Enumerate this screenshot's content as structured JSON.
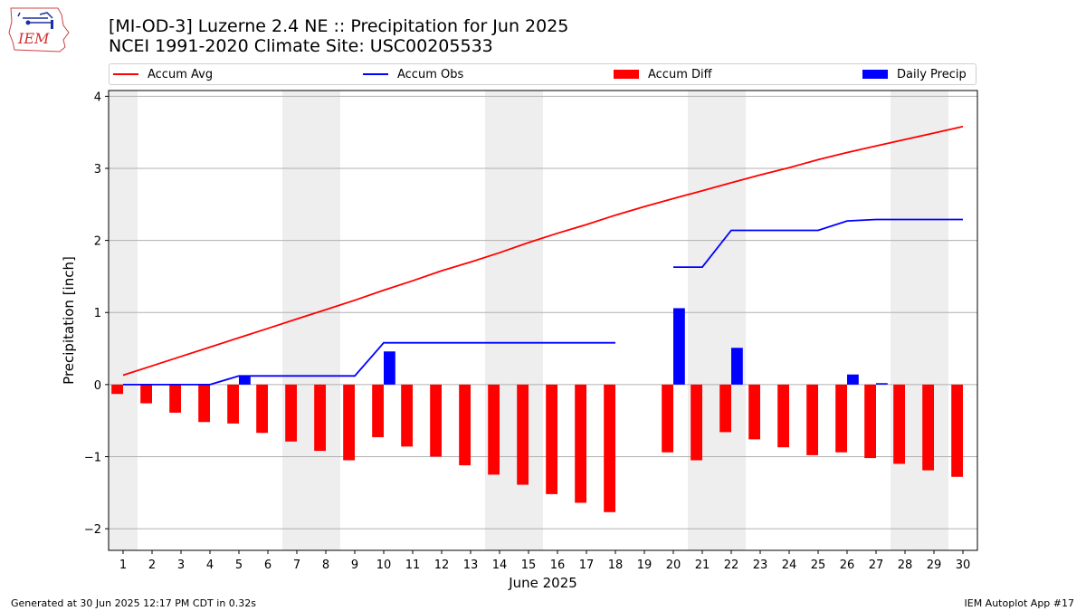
{
  "title_line1": "[MI-OD-3] Luzerne 2.4 NE :: Precipitation for Jun 2025",
  "title_line2": "NCEI 1991-2020 Climate Site: USC00205533",
  "logo_text": "IEM",
  "footer_left": "Generated at 30 Jun 2025 12:17 PM CDT in 0.32s",
  "footer_right": "IEM Autoplot App #17",
  "colors": {
    "avg": "#ff0000",
    "obs": "#0000ff",
    "diff": "#ff0000",
    "daily": "#0000ff",
    "weekend": "#eeeeee",
    "grid": "#b0b0b0"
  },
  "chart_data": {
    "type": "bar",
    "title": "[MI-OD-3] Luzerne 2.4 NE :: Precipitation for Jun 2025",
    "subtitle": "NCEI 1991-2020 Climate Site: USC00205533",
    "xlabel": "June 2025",
    "ylabel": "Precipitation [inch]",
    "xlim": [
      0.5,
      30.5
    ],
    "ylim": [
      -2.3,
      4.08
    ],
    "x_ticks": [
      1,
      2,
      3,
      4,
      5,
      6,
      7,
      8,
      9,
      10,
      11,
      12,
      13,
      14,
      15,
      16,
      17,
      18,
      19,
      20,
      21,
      22,
      23,
      24,
      25,
      26,
      27,
      28,
      29,
      30
    ],
    "x_tick_labels": [
      "1",
      "2",
      "3",
      "4",
      "5",
      "6",
      "7",
      "8",
      "9",
      "10",
      "11",
      "12",
      "13",
      "14",
      "15",
      "16",
      "17",
      "18",
      "19",
      "20",
      "21",
      "22",
      "23",
      "24",
      "25",
      "26",
      "27",
      "28",
      "29",
      "30"
    ],
    "y_ticks": [
      -2,
      -1,
      0,
      1,
      2,
      3,
      4
    ],
    "y_tick_labels": [
      "−2",
      "−1",
      "0",
      "1",
      "2",
      "3",
      "4"
    ],
    "grid": "horizontal",
    "legend_position": "top (above plot, single row)",
    "shaded_weekend_spans": [
      [
        0.5,
        1.5
      ],
      [
        6.5,
        8.5
      ],
      [
        13.5,
        15.5
      ],
      [
        20.5,
        22.5
      ],
      [
        27.5,
        29.5
      ]
    ],
    "days": [
      1,
      2,
      3,
      4,
      5,
      6,
      7,
      8,
      9,
      10,
      11,
      12,
      13,
      14,
      15,
      16,
      17,
      18,
      19,
      20,
      21,
      22,
      23,
      24,
      25,
      26,
      27,
      28,
      29,
      30
    ],
    "series": [
      {
        "name": "Accum Avg",
        "kind": "line",
        "color": "#ff0000",
        "values": [
          0.13,
          0.26,
          0.39,
          0.52,
          0.65,
          0.78,
          0.91,
          1.04,
          1.17,
          1.31,
          1.44,
          1.58,
          1.7,
          1.83,
          1.97,
          2.1,
          2.22,
          2.35,
          2.47,
          2.58,
          2.69,
          2.8,
          2.91,
          3.01,
          3.12,
          3.22,
          3.31,
          3.4,
          3.49,
          3.58
        ]
      },
      {
        "name": "Accum Obs",
        "kind": "line",
        "color": "#0000ff",
        "values": [
          0,
          0,
          0,
          0,
          0.12,
          0.12,
          0.12,
          0.12,
          0.12,
          0.58,
          0.58,
          0.58,
          0.58,
          0.58,
          0.58,
          0.58,
          0.58,
          0.58,
          null,
          1.63,
          1.63,
          2.14,
          2.14,
          2.14,
          2.14,
          2.27,
          2.29,
          2.29,
          2.29,
          2.29
        ]
      },
      {
        "name": "Accum Diff",
        "kind": "bar",
        "color": "#ff0000",
        "values": [
          -0.13,
          -0.26,
          -0.39,
          -0.52,
          -0.54,
          -0.67,
          -0.79,
          -0.92,
          -1.05,
          -0.73,
          -0.86,
          -1.0,
          -1.12,
          -1.25,
          -1.39,
          -1.52,
          -1.64,
          -1.77,
          null,
          -0.94,
          -1.05,
          -0.66,
          -0.76,
          -0.87,
          -0.98,
          -0.94,
          -1.02,
          -1.1,
          -1.19,
          -1.28
        ]
      },
      {
        "name": "Daily Precip",
        "kind": "bar",
        "color": "#0000ff",
        "values": [
          0,
          0,
          0,
          0,
          0.12,
          0,
          0,
          0,
          0,
          0.46,
          0,
          0,
          0,
          0,
          0,
          0,
          0,
          0,
          null,
          1.06,
          0,
          0.51,
          0,
          0,
          0,
          0.14,
          0.02,
          0,
          0,
          0
        ]
      }
    ]
  }
}
